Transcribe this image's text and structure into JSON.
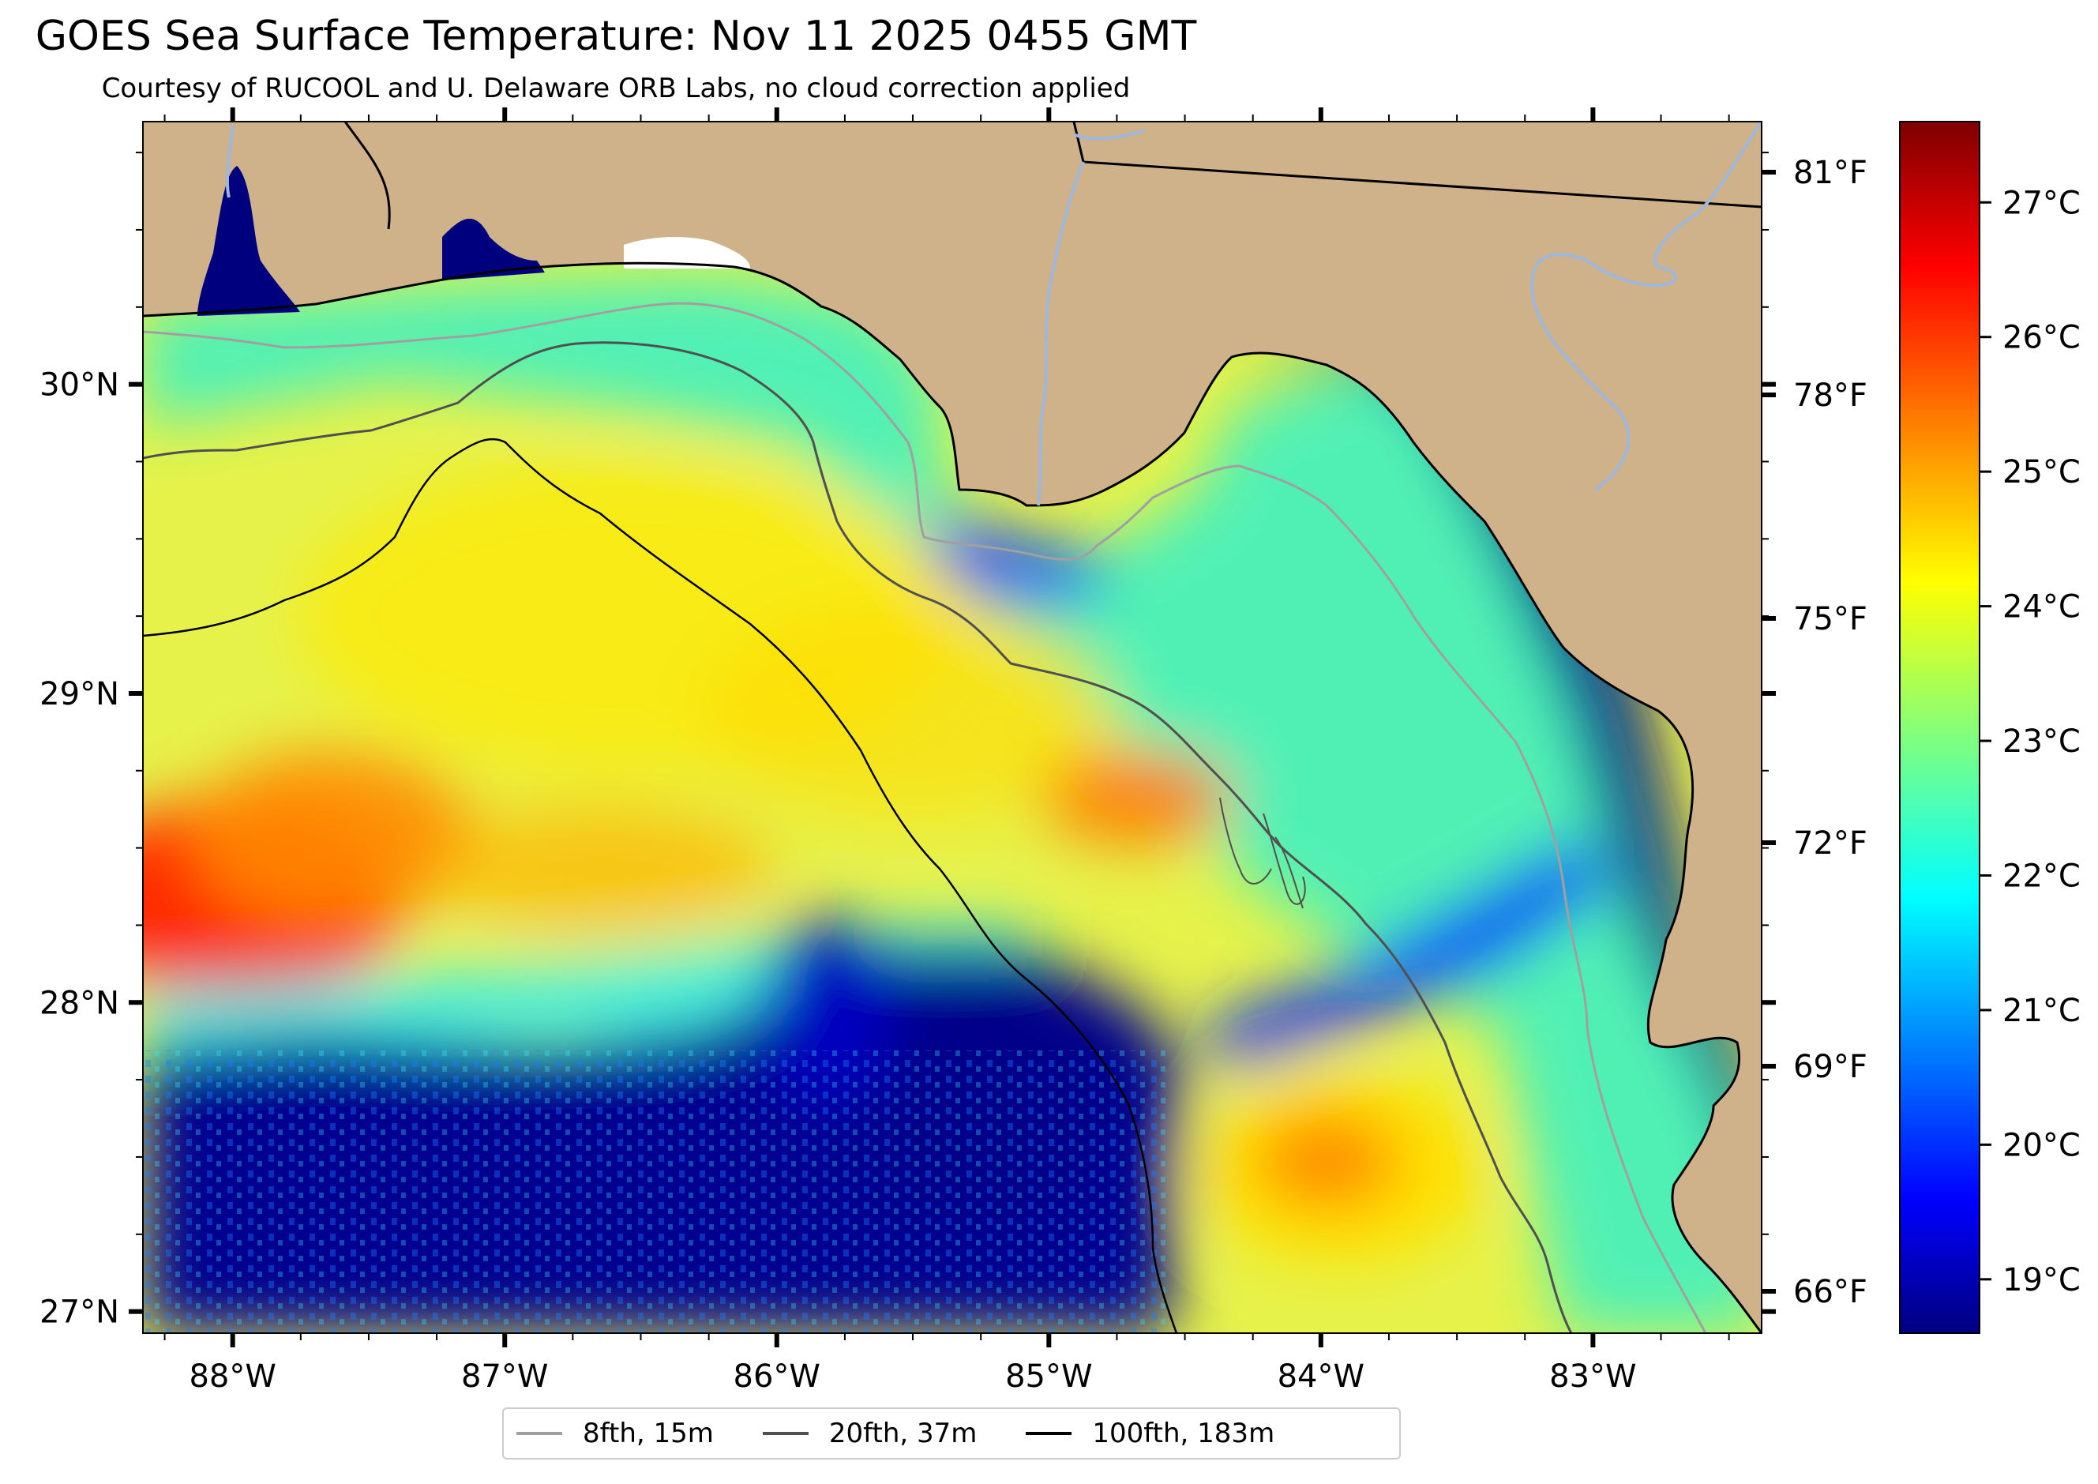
{
  "header": {
    "title": "GOES Sea Surface Temperature: Nov 11 2025 0455 GMT",
    "subtitle": "Courtesy of RUCOOL and U. Delaware ORB Labs, no cloud correction applied"
  },
  "map": {
    "lon_range": [
      -88.33,
      -82.38
    ],
    "lat_range": [
      26.93,
      30.85
    ],
    "lon_tick_labels": [
      "88°W",
      "87°W",
      "86°W",
      "85°W",
      "84°W",
      "83°W"
    ],
    "lat_tick_labels": [
      "27°N",
      "28°N",
      "29°N",
      "30°N"
    ],
    "right_temp_labels": [
      "66°F",
      "69°F",
      "72°F",
      "75°F",
      "78°F",
      "81°F"
    ],
    "land_color": "#cfb28a",
    "coastline_color": "#000000",
    "river_color": "#9fb7d8"
  },
  "colorbar": {
    "labels": [
      "19°C",
      "20°C",
      "21°C",
      "22°C",
      "23°C",
      "24°C",
      "25°C",
      "26°C",
      "27°C"
    ],
    "range_c": [
      18.6,
      27.6
    ],
    "colormap": "jet"
  },
  "legend": {
    "items": [
      {
        "label": "8fth, 15m",
        "color": "#a0a0a0"
      },
      {
        "label": "20fth, 37m",
        "color": "#505050"
      },
      {
        "label": "100fth, 183m",
        "color": "#000000"
      }
    ]
  }
}
